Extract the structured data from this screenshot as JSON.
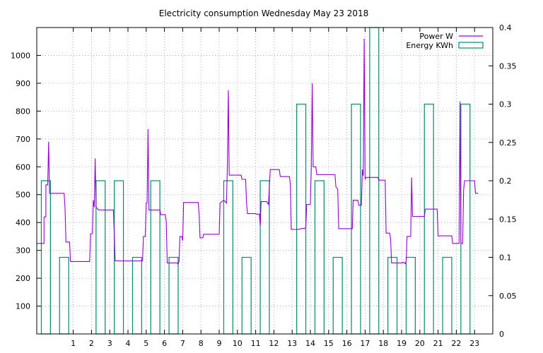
{
  "chart_data": {
    "type": "line",
    "title": "Electricity consumption Wednesday May 23 2018",
    "xlabel": "",
    "ylabel": "",
    "y2label": "",
    "xlim": [
      -1,
      24
    ],
    "ylim": [
      0,
      1100
    ],
    "y2lim": [
      0,
      0.4
    ],
    "x_ticks": [
      1,
      2,
      3,
      4,
      5,
      6,
      7,
      8,
      9,
      10,
      11,
      12,
      13,
      14,
      15,
      16,
      17,
      18,
      19,
      20,
      21,
      22,
      23
    ],
    "y_ticks": [
      100,
      200,
      300,
      400,
      500,
      600,
      700,
      800,
      900,
      1000
    ],
    "y2_ticks": [
      0,
      0.05,
      0.1,
      0.15,
      0.2,
      0.25,
      0.3,
      0.35,
      0.4
    ],
    "grid": true,
    "legend": "top-right",
    "series": [
      {
        "name": "Power W",
        "type": "line",
        "axis": "y",
        "color": "#9400d3",
        "points": [
          [
            -1.0,
            325
          ],
          [
            -0.6,
            325
          ],
          [
            -0.6,
            420
          ],
          [
            -0.5,
            420
          ],
          [
            -0.5,
            535
          ],
          [
            -0.4,
            535
          ],
          [
            -0.35,
            690
          ],
          [
            -0.3,
            505
          ],
          [
            0.5,
            505
          ],
          [
            0.55,
            450
          ],
          [
            0.6,
            330
          ],
          [
            0.8,
            330
          ],
          [
            0.85,
            260
          ],
          [
            1.9,
            260
          ],
          [
            1.95,
            360
          ],
          [
            2.05,
            360
          ],
          [
            2.1,
            480
          ],
          [
            2.15,
            455
          ],
          [
            2.2,
            630
          ],
          [
            2.25,
            455
          ],
          [
            2.4,
            445
          ],
          [
            3.2,
            445
          ],
          [
            3.3,
            262
          ],
          [
            4.8,
            262
          ],
          [
            4.85,
            350
          ],
          [
            4.95,
            350
          ],
          [
            5.0,
            470
          ],
          [
            5.05,
            470
          ],
          [
            5.1,
            735
          ],
          [
            5.15,
            445
          ],
          [
            5.75,
            445
          ],
          [
            5.8,
            428
          ],
          [
            6.05,
            428
          ],
          [
            6.1,
            400
          ],
          [
            6.15,
            255
          ],
          [
            6.7,
            255
          ],
          [
            6.75,
            250
          ],
          [
            6.8,
            260
          ],
          [
            6.85,
            350
          ],
          [
            6.95,
            350
          ],
          [
            7.0,
            335
          ],
          [
            7.05,
            472
          ],
          [
            7.85,
            472
          ],
          [
            7.9,
            432
          ],
          [
            7.95,
            345
          ],
          [
            8.1,
            345
          ],
          [
            8.15,
            358
          ],
          [
            9.0,
            358
          ],
          [
            9.05,
            470
          ],
          [
            9.2,
            478
          ],
          [
            9.3,
            478
          ],
          [
            9.4,
            470
          ],
          [
            9.45,
            600
          ],
          [
            9.5,
            875
          ],
          [
            9.55,
            570
          ],
          [
            10.2,
            570
          ],
          [
            10.25,
            555
          ],
          [
            10.45,
            555
          ],
          [
            10.5,
            470
          ],
          [
            10.55,
            432
          ],
          [
            11.0,
            432
          ],
          [
            11.05,
            430
          ],
          [
            11.2,
            430
          ],
          [
            11.25,
            388
          ],
          [
            11.3,
            475
          ],
          [
            11.6,
            475
          ],
          [
            11.7,
            465
          ],
          [
            11.8,
            590
          ],
          [
            12.3,
            590
          ],
          [
            12.35,
            565
          ],
          [
            12.85,
            565
          ],
          [
            12.9,
            540
          ],
          [
            12.95,
            375
          ],
          [
            13.3,
            375
          ],
          [
            13.5,
            378
          ],
          [
            13.75,
            380
          ],
          [
            13.8,
            465
          ],
          [
            14.0,
            465
          ],
          [
            14.05,
            600
          ],
          [
            14.1,
            900
          ],
          [
            14.15,
            600
          ],
          [
            14.3,
            600
          ],
          [
            14.35,
            572
          ],
          [
            15.35,
            572
          ],
          [
            15.4,
            528
          ],
          [
            15.5,
            520
          ],
          [
            15.55,
            378
          ],
          [
            16.3,
            378
          ],
          [
            16.35,
            480
          ],
          [
            16.6,
            480
          ],
          [
            16.65,
            462
          ],
          [
            16.8,
            462
          ],
          [
            16.85,
            590
          ],
          [
            16.9,
            568
          ],
          [
            16.95,
            1060
          ],
          [
            17.0,
            555
          ],
          [
            17.05,
            562
          ],
          [
            17.7,
            562
          ],
          [
            17.75,
            552
          ],
          [
            18.1,
            552
          ],
          [
            18.15,
            362
          ],
          [
            18.35,
            362
          ],
          [
            18.4,
            340
          ],
          [
            18.45,
            255
          ],
          [
            19.05,
            255
          ],
          [
            19.1,
            258
          ],
          [
            19.2,
            252
          ],
          [
            19.25,
            260
          ],
          [
            19.3,
            350
          ],
          [
            19.5,
            350
          ],
          [
            19.55,
            562
          ],
          [
            19.6,
            422
          ],
          [
            20.25,
            422
          ],
          [
            20.3,
            448
          ],
          [
            20.95,
            448
          ],
          [
            21.0,
            352
          ],
          [
            21.75,
            352
          ],
          [
            21.8,
            325
          ],
          [
            22.15,
            325
          ],
          [
            22.2,
            835
          ],
          [
            22.25,
            325
          ],
          [
            22.35,
            325
          ],
          [
            22.4,
            515
          ],
          [
            22.45,
            550
          ],
          [
            23.0,
            550
          ],
          [
            23.05,
            505
          ],
          [
            23.2,
            505
          ]
        ]
      },
      {
        "name": "Energy KWh",
        "type": "bar",
        "axis": "y2",
        "color": "#008b6b",
        "width": 0.5,
        "points": [
          [
            -1,
            0.2
          ],
          [
            0,
            0.1
          ],
          [
            2,
            0.2
          ],
          [
            3,
            0.2
          ],
          [
            4,
            0.1
          ],
          [
            5,
            0.2
          ],
          [
            6,
            0.1
          ],
          [
            9,
            0.2
          ],
          [
            10,
            0.1
          ],
          [
            11,
            0.2
          ],
          [
            13,
            0.3
          ],
          [
            14,
            0.2
          ],
          [
            15,
            0.1
          ],
          [
            16,
            0.3
          ],
          [
            17,
            0.4
          ],
          [
            18,
            0.1
          ],
          [
            19,
            0.1
          ],
          [
            20,
            0.3
          ],
          [
            21,
            0.1
          ],
          [
            22,
            0.3
          ]
        ]
      }
    ]
  }
}
